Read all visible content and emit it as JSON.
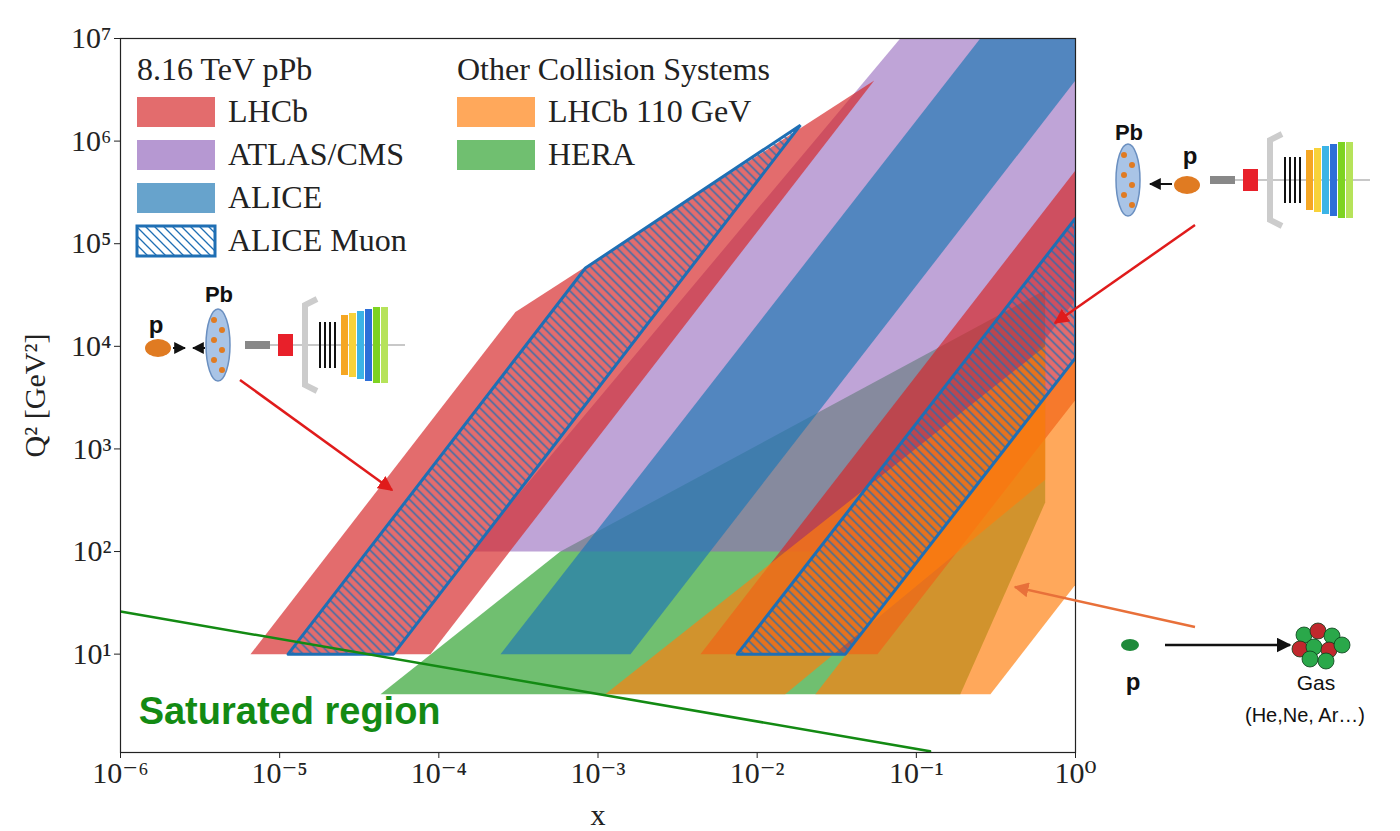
{
  "chart_data": {
    "type": "area",
    "log": true,
    "grid": false,
    "legend": "upper left",
    "x_label": "x",
    "y_label": "Q² [GeV²]",
    "xlim": [
      1e-06,
      1
    ],
    "ylim": [
      1.1,
      10000000.0
    ],
    "xticks": [
      {
        "value": 1e-06,
        "label": "10⁻⁶"
      },
      {
        "value": 1e-05,
        "label": "10⁻⁵"
      },
      {
        "value": 0.0001,
        "label": "10⁻⁴"
      },
      {
        "value": 0.001,
        "label": "10⁻³"
      },
      {
        "value": 0.01,
        "label": "10⁻²"
      },
      {
        "value": 0.1,
        "label": "10⁻¹"
      },
      {
        "value": 1,
        "label": "10⁰"
      }
    ],
    "yticks": [
      {
        "value": 10,
        "label": "10¹"
      },
      {
        "value": 100,
        "label": "10²"
      },
      {
        "value": 1000,
        "label": "10³"
      },
      {
        "value": 10000,
        "label": "10⁴"
      },
      {
        "value": 100000,
        "label": "10⁵"
      },
      {
        "value": 1000000,
        "label": "10⁶"
      },
      {
        "value": 10000000,
        "label": "10⁷"
      }
    ],
    "legend_groups": [
      {
        "title": "8.16 TeV pPb",
        "entries": [
          "LHCb",
          "ATLAS/CMS",
          "ALICE",
          "ALICE Muon"
        ]
      },
      {
        "title": "Other Collision Systems",
        "entries": [
          "LHCb 110 GeV",
          "HERA"
        ]
      }
    ],
    "series": [
      {
        "name": "HERA",
        "type": "area",
        "color": "#2ca02c",
        "values": [
          [
            [
              4.3e-05,
              4.06
            ],
            [
              0.189,
              4.06
            ],
            [
              0.645,
              300
            ],
            [
              0.645,
              35400
            ],
            [
              0.00058,
              100
            ]
          ]
        ]
      },
      {
        "name": "ATLAS/CMS",
        "type": "area",
        "color": "#9467bd",
        "values": [
          [
            [
              0.000158,
              100
            ],
            [
              0.0594,
              100
            ],
            [
              1,
              28200
            ],
            [
              1,
              10000000.0
            ],
            [
              0.0792,
              10000000.0
            ]
          ]
        ]
      },
      {
        "name": "ALICE",
        "type": "area",
        "color": "#1f77b4",
        "values": [
          [
            [
              0.000244,
              10
            ],
            [
              0.0016,
              10
            ],
            [
              1,
              3900000
            ],
            [
              1,
              10000000.0
            ],
            [
              0.252,
              10000000.0
            ]
          ]
        ]
      },
      {
        "name": "LHCb",
        "type": "area",
        "color": "#d62728",
        "values": [
          [
            [
              6.56e-06,
              10
            ],
            [
              8.85e-05,
              10
            ],
            [
              0.0544,
              3900000
            ],
            [
              0.000303,
              21600
            ]
          ],
          [
            [
              0.0044,
              10
            ],
            [
              0.057,
              10
            ],
            [
              1,
              3000
            ],
            [
              1,
              520000
            ]
          ]
        ]
      },
      {
        "name": "LHCb 110 GeV",
        "type": "area",
        "color": "#ff7f0e",
        "values": [
          [
            [
              0.00111,
              4.06
            ],
            [
              0.015,
              4.06
            ],
            [
              0.645,
              500
            ],
            [
              0.645,
              10000
            ]
          ],
          [
            [
              0.0232,
              4.06
            ],
            [
              0.292,
              4.06
            ],
            [
              1,
              47.7
            ],
            [
              1,
              7600
            ]
          ]
        ]
      },
      {
        "name": "ALICE Muon",
        "type": "hatched_area",
        "color": "#1f6fb4",
        "values": [
          [
            [
              1.13e-05,
              10
            ],
            [
              5.19e-05,
              10
            ],
            [
              0.0187,
              1430000
            ],
            [
              0.000834,
              58000
            ]
          ],
          [
            [
              0.0075,
              10
            ],
            [
              0.0358,
              10
            ],
            [
              1,
              7700
            ],
            [
              1,
              177000
            ]
          ]
        ]
      },
      {
        "name": "Saturated region",
        "type": "line",
        "color": "#138a13",
        "values": [
          [
            1e-06,
            26
          ],
          [
            0.122,
            1.13
          ]
        ],
        "label_at": [
          1.3e-06,
          2.75
        ]
      }
    ],
    "insets": [
      {
        "beam": "p",
        "target": "Pb"
      },
      {
        "beam": "p",
        "target": "Pb"
      },
      {
        "beam": "p",
        "target": "Gas",
        "target_detail": "(He,Ne, Ar…)"
      }
    ]
  }
}
